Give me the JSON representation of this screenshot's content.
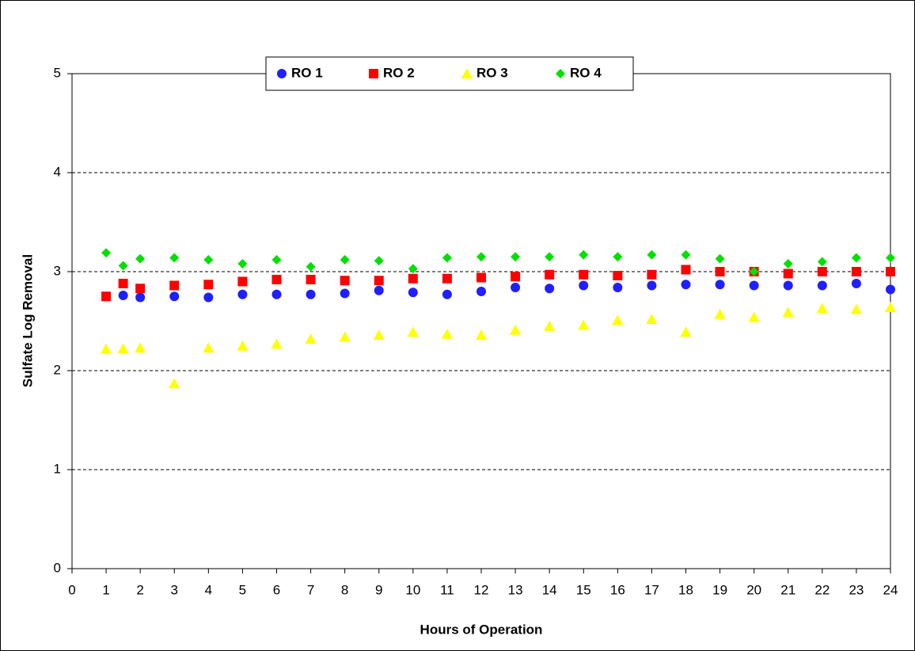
{
  "chart_data": {
    "type": "scatter",
    "xlabel": "Hours of Operation",
    "ylabel": "Sulfate Log Removal",
    "xlim": [
      0,
      24
    ],
    "xticks": [
      0,
      1,
      2,
      3,
      4,
      5,
      6,
      7,
      8,
      9,
      10,
      11,
      12,
      13,
      14,
      15,
      16,
      17,
      18,
      19,
      20,
      21,
      22,
      23,
      24
    ],
    "ylim": [
      0,
      5
    ],
    "yticks": [
      0,
      1,
      2,
      3,
      4,
      5
    ],
    "grid": true,
    "legend": "top",
    "series": [
      {
        "name": "RO 1",
        "color": "#1f1fff",
        "marker": "circle",
        "x": [
          1.5,
          2,
          3,
          4,
          5,
          6,
          7,
          8,
          9,
          10,
          11,
          12,
          13,
          14,
          15,
          16,
          17,
          18,
          19,
          20,
          21,
          22,
          23,
          24
        ],
        "values": [
          2.76,
          2.74,
          2.75,
          2.74,
          2.77,
          2.77,
          2.77,
          2.78,
          2.81,
          2.79,
          2.77,
          2.8,
          2.84,
          2.83,
          2.86,
          2.84,
          2.86,
          2.87,
          2.87,
          2.86,
          2.86,
          2.86,
          2.88,
          2.82
        ]
      },
      {
        "name": "RO 2",
        "color": "#ff0000",
        "marker": "square",
        "x": [
          1,
          1.5,
          2,
          3,
          4,
          5,
          6,
          7,
          8,
          9,
          10,
          11,
          12,
          13,
          14,
          15,
          16,
          17,
          18,
          19,
          20,
          21,
          22,
          23,
          24
        ],
        "values": [
          2.75,
          2.88,
          2.83,
          2.86,
          2.87,
          2.9,
          2.92,
          2.92,
          2.91,
          2.91,
          2.93,
          2.93,
          2.94,
          2.95,
          2.97,
          2.97,
          2.96,
          2.97,
          3.02,
          3.0,
          3.0,
          2.98,
          3.0,
          3.0,
          3.0
        ]
      },
      {
        "name": "RO 3",
        "color": "#ffff00",
        "marker": "triangle",
        "x": [
          1,
          1.5,
          2,
          3,
          4,
          5,
          6,
          7,
          8,
          9,
          10,
          11,
          12,
          13,
          14,
          15,
          16,
          17,
          18,
          19,
          20,
          21,
          22,
          23,
          24
        ],
        "values": [
          2.22,
          2.22,
          2.23,
          1.87,
          2.23,
          2.25,
          2.27,
          2.32,
          2.34,
          2.36,
          2.39,
          2.37,
          2.36,
          2.41,
          2.45,
          2.46,
          2.51,
          2.52,
          2.39,
          2.57,
          2.54,
          2.59,
          2.63,
          2.62,
          2.64
        ]
      },
      {
        "name": "RO 4",
        "color": "#00e000",
        "marker": "diamond",
        "x": [
          1,
          1.5,
          2,
          3,
          4,
          5,
          6,
          7,
          8,
          9,
          10,
          11,
          12,
          13,
          14,
          15,
          16,
          17,
          18,
          19,
          20,
          21,
          22,
          23,
          24
        ],
        "values": [
          3.19,
          3.06,
          3.13,
          3.14,
          3.12,
          3.08,
          3.12,
          3.05,
          3.12,
          3.11,
          3.03,
          3.14,
          3.15,
          3.15,
          3.15,
          3.17,
          3.15,
          3.17,
          3.17,
          3.13,
          3.0,
          3.08,
          3.1,
          3.14,
          3.14
        ]
      }
    ]
  }
}
